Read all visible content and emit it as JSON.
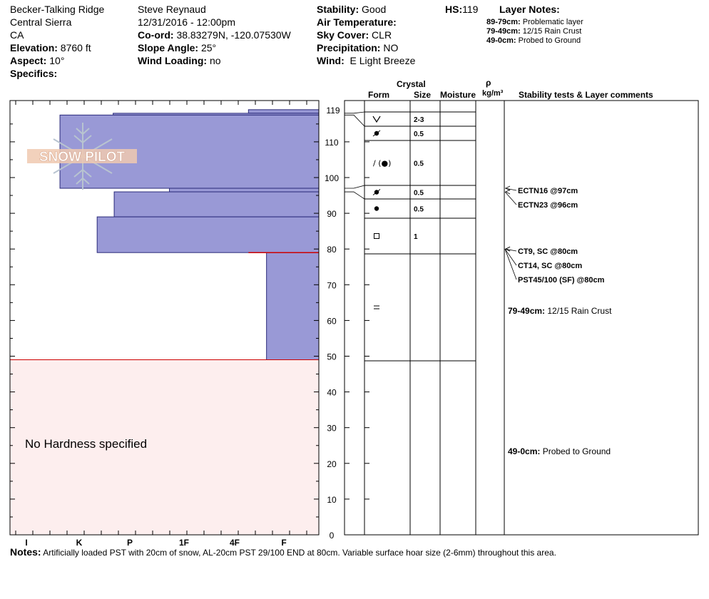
{
  "header": {
    "location": "Becker-Talking Ridge",
    "region": "Central Sierra",
    "state": "CA",
    "elevation_label": "Elevation:",
    "elevation": "8760 ft",
    "aspect_label": "Aspect:",
    "aspect": "10°",
    "specifics_label": "Specifics:",
    "observer": "Steve Reynaud",
    "datetime": "12/31/2016 - 12:00pm",
    "coord_label": "Co-ord:",
    "coord": "38.83279N, -120.07530W",
    "slope_label": "Slope Angle:",
    "slope": "25°",
    "wind_loading_label": "Wind Loading:",
    "wind_loading": "no",
    "stability_label": "Stability:",
    "stability": "Good",
    "air_temp_label": "Air Temperature:",
    "sky_label": "Sky Cover:",
    "sky": "CLR",
    "precip_label": "Precipitation:",
    "precip": "NO",
    "wind_label": "Wind:",
    "wind": "E Light Breeze",
    "hs_label": "HS:",
    "hs": "119",
    "layer_notes_title": "Layer Notes:"
  },
  "layer_notes": [
    {
      "range": "89-79cm:",
      "text": "Problematic layer"
    },
    {
      "range": "79-49cm:",
      "text": "12/15 Rain Crust"
    },
    {
      "range": "49-0cm:",
      "text": "Probed to Ground"
    }
  ],
  "logo_text": "SNOW PILOT",
  "colors": {
    "hardness_fill": "#9999d6",
    "no_hardness_fill": "#fdeeee",
    "layer_line_red": "#cc0000"
  },
  "chart_data": {
    "type": "snow-profile",
    "y_axis": {
      "min": 0,
      "max": 119,
      "ticks": [
        0,
        10,
        20,
        30,
        40,
        50,
        60,
        70,
        80,
        90,
        100,
        110
      ],
      "top_label": "119"
    },
    "hardness_axis": {
      "labels": [
        "I",
        "K",
        "P",
        "1F",
        "4F",
        "F"
      ]
    },
    "hardness_layers": [
      {
        "top": 119,
        "bottom": 118,
        "hardness": 4.3
      },
      {
        "top": 118,
        "bottom": 117.5,
        "hardness": 1.68
      },
      {
        "top": 117.5,
        "bottom": 97,
        "hardness": 0.65
      },
      {
        "top": 97,
        "bottom": 96,
        "hardness": 2.77
      },
      {
        "top": 96,
        "bottom": 89,
        "hardness": 1.7
      },
      {
        "top": 89,
        "bottom": 79,
        "hardness": 1.37
      },
      {
        "top": 79,
        "bottom": 49,
        "hardness": 4.65
      }
    ],
    "no_hardness_range": [
      0,
      49
    ],
    "no_hardness_text": "No Hardness specified",
    "column_headers": {
      "crystal": "Crystal",
      "form": "Form",
      "size": "Size",
      "moisture": "Moisture",
      "rho": "ρ",
      "density_unit": "kg/m³",
      "comments": "Stability tests & Layer comments"
    },
    "layer_boundaries": [
      119,
      118,
      114,
      110,
      98,
      96,
      93,
      89,
      79,
      49
    ],
    "crystal_rows": [
      {
        "top": 118,
        "bottom": 114,
        "form": "v",
        "size": "2-3"
      },
      {
        "top": 114,
        "bottom": 110,
        "form": "rounded-facet",
        "size": "0.5"
      },
      {
        "top": 110,
        "bottom": 98,
        "form": "/ (●)",
        "size": "0.5"
      },
      {
        "top": 98,
        "bottom": 96,
        "form": "rounded-facet",
        "size": "0.5"
      },
      {
        "top": 96,
        "bottom": 89,
        "form": "●",
        "size": "0.5"
      },
      {
        "top": 89,
        "bottom": 79,
        "form": "□",
        "size": "1"
      },
      {
        "top": 79,
        "bottom": 49,
        "form": "=",
        "size": ""
      }
    ],
    "stability_tests": [
      {
        "text": "ECTN16 @97cm",
        "depth": 97
      },
      {
        "text": "ECTN23 @96cm",
        "depth": 96
      },
      {
        "text": "CT9, SC @80cm",
        "depth": 80
      },
      {
        "text": "CT14, SC @80cm",
        "depth": 80
      },
      {
        "text": "PST45/100 (SF) @80cm",
        "depth": 80
      }
    ],
    "layer_comments": [
      {
        "range": "79-49cm:",
        "text": "12/15 Rain Crust",
        "depth": 64
      },
      {
        "range": "49-0cm:",
        "text": "Probed to Ground",
        "depth": 24
      }
    ]
  },
  "notes": {
    "label": "Notes:",
    "text": "Artificially loaded PST with 20cm of snow, AL-20cm PST 29/100 END at 80cm.  Variable surface hoar size (2-6mm) throughout this area."
  }
}
